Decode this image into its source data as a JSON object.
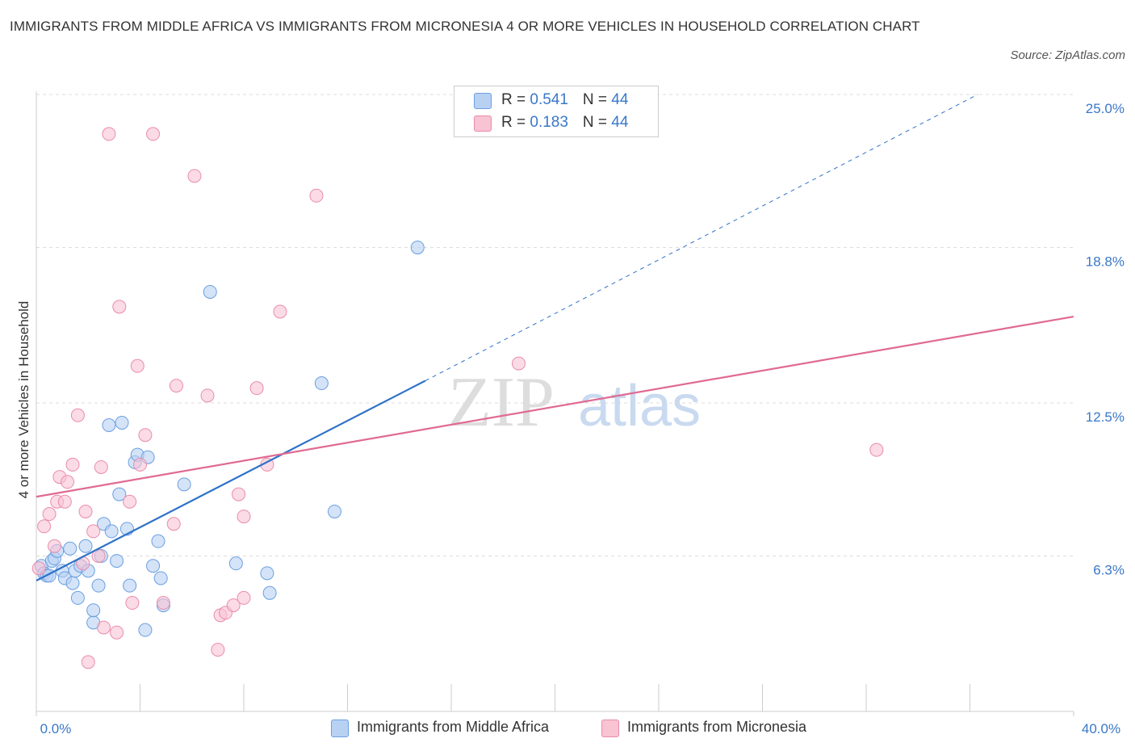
{
  "title": "IMMIGRANTS FROM MIDDLE AFRICA VS IMMIGRANTS FROM MICRONESIA 4 OR MORE VEHICLES IN HOUSEHOLD CORRELATION CHART",
  "source": "Source: ZipAtlas.com",
  "watermark": {
    "zip": "ZIP",
    "atlas": "atlas"
  },
  "legend": [
    {
      "r_label": "R = ",
      "r_value": "0.541",
      "n_label": "N = ",
      "n_value": "44"
    },
    {
      "r_label": "R = ",
      "r_value": "0.183",
      "n_label": "N = ",
      "n_value": "44"
    }
  ],
  "colors": {
    "blue_fill": "#b8d1f3",
    "blue_stroke": "#6a9fe0",
    "blue_line": "#2f72c8",
    "pink_fill": "#f8c3d3",
    "pink_stroke": "#e98cab",
    "pink_line": "#e06a92",
    "tick_label": "#3a78c9",
    "grid": "#dddddd"
  },
  "chart_data": {
    "type": "scatter",
    "ylabel": "4 or more Vehicles in Household",
    "xlim": [
      0,
      40
    ],
    "ylim": [
      0,
      25
    ],
    "x_tick_labels": [
      {
        "value": 0,
        "label": "0.0%"
      },
      {
        "value": 40,
        "label": "40.0%"
      }
    ],
    "y_tick_labels": [
      {
        "value": 6.3,
        "label": "6.3%"
      },
      {
        "value": 12.5,
        "label": "12.5%"
      },
      {
        "value": 18.8,
        "label": "18.8%"
      },
      {
        "value": 25.0,
        "label": "25.0%"
      }
    ],
    "grid": true,
    "legend_position": "top-center",
    "series": [
      {
        "name": "Immigrants from Middle Africa",
        "points": [
          [
            0.2,
            5.9
          ],
          [
            0.3,
            5.6
          ],
          [
            0.4,
            5.5
          ],
          [
            0.5,
            5.5
          ],
          [
            0.6,
            6.1
          ],
          [
            0.7,
            6.2
          ],
          [
            0.8,
            6.5
          ],
          [
            1.0,
            5.7
          ],
          [
            1.1,
            5.4
          ],
          [
            1.3,
            6.6
          ],
          [
            1.4,
            5.2
          ],
          [
            1.5,
            5.7
          ],
          [
            1.6,
            4.6
          ],
          [
            1.7,
            5.9
          ],
          [
            1.9,
            6.7
          ],
          [
            2.0,
            5.7
          ],
          [
            2.2,
            3.6
          ],
          [
            2.2,
            4.1
          ],
          [
            2.4,
            5.1
          ],
          [
            2.5,
            6.3
          ],
          [
            2.6,
            7.6
          ],
          [
            2.8,
            11.6
          ],
          [
            2.9,
            7.3
          ],
          [
            3.1,
            6.1
          ],
          [
            3.2,
            8.8
          ],
          [
            3.3,
            11.7
          ],
          [
            3.5,
            7.4
          ],
          [
            3.6,
            5.1
          ],
          [
            3.8,
            10.1
          ],
          [
            3.9,
            10.4
          ],
          [
            4.2,
            3.3
          ],
          [
            4.3,
            10.3
          ],
          [
            4.5,
            5.9
          ],
          [
            4.8,
            5.4
          ],
          [
            4.7,
            6.9
          ],
          [
            4.9,
            4.3
          ],
          [
            5.7,
            9.2
          ],
          [
            6.7,
            17.0
          ],
          [
            7.7,
            6.0
          ],
          [
            8.9,
            5.6
          ],
          [
            9.0,
            4.8
          ],
          [
            11.0,
            13.3
          ],
          [
            11.5,
            8.1
          ],
          [
            14.7,
            18.8
          ]
        ]
      },
      {
        "name": "Immigrants from Micronesia",
        "points": [
          [
            0.1,
            5.8
          ],
          [
            0.3,
            7.5
          ],
          [
            0.5,
            8.0
          ],
          [
            0.7,
            6.7
          ],
          [
            0.8,
            8.5
          ],
          [
            0.9,
            9.5
          ],
          [
            1.1,
            8.5
          ],
          [
            1.2,
            9.3
          ],
          [
            1.4,
            10.0
          ],
          [
            1.6,
            12.0
          ],
          [
            1.8,
            6.0
          ],
          [
            1.9,
            8.1
          ],
          [
            2.0,
            2.0
          ],
          [
            2.2,
            7.3
          ],
          [
            2.4,
            6.3
          ],
          [
            2.5,
            9.9
          ],
          [
            2.6,
            3.4
          ],
          [
            2.8,
            23.4
          ],
          [
            3.1,
            3.2
          ],
          [
            3.2,
            16.4
          ],
          [
            3.6,
            8.5
          ],
          [
            3.7,
            4.4
          ],
          [
            3.9,
            14.0
          ],
          [
            4.0,
            10.0
          ],
          [
            4.2,
            11.2
          ],
          [
            4.5,
            23.4
          ],
          [
            4.9,
            4.4
          ],
          [
            5.3,
            7.6
          ],
          [
            5.4,
            13.2
          ],
          [
            6.1,
            21.7
          ],
          [
            6.6,
            12.8
          ],
          [
            7.0,
            2.5
          ],
          [
            7.1,
            3.9
          ],
          [
            7.3,
            4.0
          ],
          [
            7.6,
            4.3
          ],
          [
            7.8,
            8.8
          ],
          [
            8.0,
            4.6
          ],
          [
            8.0,
            7.9
          ],
          [
            8.5,
            13.1
          ],
          [
            8.9,
            10.0
          ],
          [
            9.4,
            16.2
          ],
          [
            10.8,
            20.9
          ],
          [
            18.6,
            14.1
          ],
          [
            32.4,
            10.6
          ]
        ]
      }
    ],
    "trend_lines": [
      {
        "series": "Immigrants from Middle Africa",
        "solid_from": [
          0,
          5.3
        ],
        "solid_to": [
          15.0,
          13.4
        ],
        "dashed_to": [
          36.3,
          25.0
        ]
      },
      {
        "series": "Immigrants from Micronesia",
        "from": [
          0,
          8.7
        ],
        "to": [
          40,
          16.0
        ]
      }
    ]
  }
}
